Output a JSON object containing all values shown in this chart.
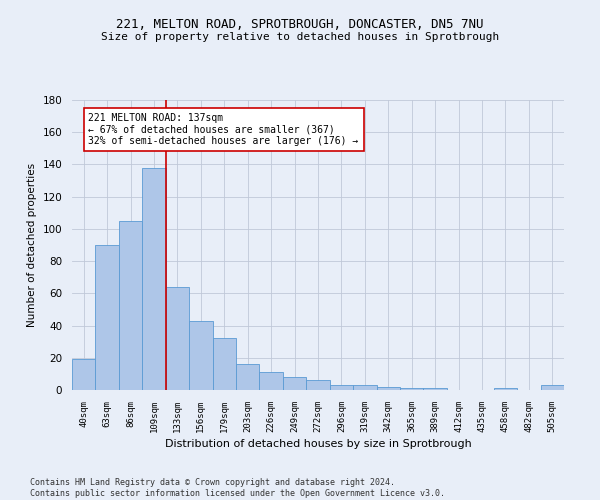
{
  "title_line1": "221, MELTON ROAD, SPROTBROUGH, DONCASTER, DN5 7NU",
  "title_line2": "Size of property relative to detached houses in Sprotbrough",
  "xlabel": "Distribution of detached houses by size in Sprotbrough",
  "ylabel": "Number of detached properties",
  "footer_line1": "Contains HM Land Registry data © Crown copyright and database right 2024.",
  "footer_line2": "Contains public sector information licensed under the Open Government Licence v3.0.",
  "bar_labels": [
    "40sqm",
    "63sqm",
    "86sqm",
    "109sqm",
    "133sqm",
    "156sqm",
    "179sqm",
    "203sqm",
    "226sqm",
    "249sqm",
    "272sqm",
    "296sqm",
    "319sqm",
    "342sqm",
    "365sqm",
    "389sqm",
    "412sqm",
    "435sqm",
    "458sqm",
    "482sqm",
    "505sqm"
  ],
  "bar_values": [
    19,
    90,
    105,
    138,
    64,
    43,
    32,
    16,
    11,
    8,
    6,
    3,
    3,
    2,
    1,
    1,
    0,
    0,
    1,
    0,
    3
  ],
  "bar_color": "#aec6e8",
  "bar_edge_color": "#5a9ad4",
  "background_color": "#e8eef8",
  "grid_color": "#c0c8d8",
  "property_label": "221 MELTON ROAD: 137sqm",
  "annotation_line1": "← 67% of detached houses are smaller (367)",
  "annotation_line2": "32% of semi-detached houses are larger (176) →",
  "vline_x_index": 4,
  "vline_color": "#cc0000",
  "annotation_box_color": "#ffffff",
  "annotation_box_edge_color": "#cc0000",
  "ylim": [
    0,
    180
  ],
  "yticks": [
    0,
    20,
    40,
    60,
    80,
    100,
    120,
    140,
    160,
    180
  ]
}
